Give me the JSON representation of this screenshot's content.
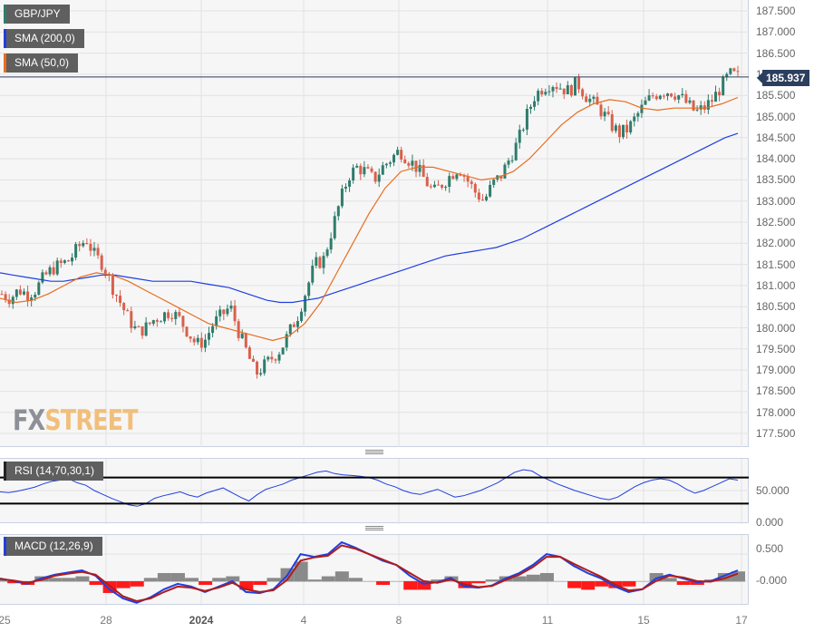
{
  "chart_data": [
    {
      "type": "candlestick",
      "title": "GBP/JPY",
      "legend": [
        {
          "label": "GBP/JPY",
          "color": "#2e7d6b"
        },
        {
          "label": "SMA (200,0)",
          "color": "#1f3fe0"
        },
        {
          "label": "SMA (50,0)",
          "color": "#e86d1f"
        }
      ],
      "y_ticks": [
        "187.500",
        "187.000",
        "186.500",
        "186.000",
        "185.500",
        "185.000",
        "184.500",
        "184.000",
        "183.500",
        "183.000",
        "182.500",
        "182.000",
        "181.500",
        "181.000",
        "180.500",
        "180.000",
        "179.500",
        "179.000",
        "178.500",
        "178.000",
        "177.500"
      ],
      "ylim": [
        177.2,
        187.8
      ],
      "last_price": "185.937",
      "x_ticks": [
        {
          "label": "25",
          "bold": false
        },
        {
          "label": "28",
          "bold": false
        },
        {
          "label": "2024",
          "bold": true
        },
        {
          "label": "4",
          "bold": false
        },
        {
          "label": "8",
          "bold": false
        },
        {
          "label": "11",
          "bold": false
        },
        {
          "label": "15",
          "bold": false
        },
        {
          "label": "17",
          "bold": false
        }
      ],
      "close_path": [
        180.8,
        180.7,
        180.9,
        180.8,
        180.9,
        181.2,
        181.4,
        181.5,
        181.6,
        181.9,
        182.1,
        181.7,
        181.5,
        181.0,
        180.6,
        180.2,
        179.9,
        180.0,
        180.2,
        180.3,
        180.4,
        180.2,
        179.9,
        179.6,
        179.7,
        180.1,
        180.3,
        180.5,
        179.9,
        179.4,
        178.9,
        179.1,
        179.3,
        179.5,
        179.9,
        180.3,
        180.9,
        181.5,
        181.6,
        182.3,
        183.0,
        183.6,
        183.8,
        183.7,
        183.5,
        183.8,
        184.0,
        184.2,
        184.0,
        183.8,
        183.5,
        183.2,
        183.4,
        183.6,
        183.8,
        183.5,
        183.2,
        183.0,
        183.4,
        183.6,
        184.0,
        184.4,
        185.0,
        185.5,
        185.7,
        185.8,
        185.7,
        185.6,
        185.8,
        185.5,
        185.3,
        185.1,
        184.8,
        184.6,
        184.7,
        185.0,
        185.3,
        185.5,
        185.6,
        185.6,
        185.5,
        185.3,
        185.1,
        185.2,
        185.4,
        185.7,
        186.0,
        185.95
      ],
      "sma200_path": [
        181.3,
        181.25,
        181.2,
        181.15,
        181.1,
        181.1,
        181.15,
        181.2,
        181.25,
        181.25,
        181.2,
        181.15,
        181.1,
        181.1,
        181.1,
        181.1,
        181.05,
        181.0,
        180.95,
        180.85,
        180.75,
        180.65,
        180.6,
        180.6,
        180.65,
        180.7,
        180.8,
        180.9,
        181.0,
        181.1,
        181.2,
        181.3,
        181.4,
        181.5,
        181.6,
        181.7,
        181.75,
        181.8,
        181.85,
        181.9,
        182.0,
        182.1,
        182.25,
        182.4,
        182.55,
        182.7,
        182.85,
        183.0,
        183.15,
        183.3,
        183.45,
        183.6,
        183.75,
        183.9,
        184.05,
        184.2,
        184.35,
        184.5,
        184.6
      ],
      "sma50_path": [
        180.7,
        180.6,
        180.65,
        180.8,
        181.0,
        181.2,
        181.3,
        181.25,
        181.1,
        180.9,
        180.7,
        180.5,
        180.3,
        180.1,
        180.0,
        179.9,
        179.8,
        179.7,
        179.8,
        180.1,
        180.6,
        181.3,
        182.0,
        182.7,
        183.3,
        183.7,
        183.8,
        183.8,
        183.7,
        183.6,
        183.5,
        183.55,
        183.7,
        184.0,
        184.4,
        184.8,
        185.1,
        185.3,
        185.4,
        185.35,
        185.2,
        185.15,
        185.2,
        185.2,
        185.2,
        185.3,
        185.45
      ]
    },
    {
      "type": "line",
      "title": "RSI (14,70,30,1)",
      "y_ticks": [
        "50.000",
        "0.000"
      ],
      "levels": [
        70,
        30
      ],
      "ylim": [
        0,
        100
      ],
      "values": [
        48,
        47,
        49,
        52,
        55,
        60,
        64,
        66,
        68,
        62,
        58,
        50,
        44,
        38,
        33,
        28,
        26,
        30,
        38,
        42,
        45,
        48,
        43,
        40,
        46,
        50,
        54,
        47,
        40,
        34,
        44,
        52,
        56,
        60,
        66,
        70,
        74,
        78,
        80,
        76,
        74,
        73,
        72,
        70,
        66,
        60,
        56,
        50,
        46,
        44,
        48,
        52,
        46,
        40,
        42,
        46,
        50,
        56,
        62,
        70,
        78,
        82,
        80,
        72,
        66,
        60,
        55,
        50,
        46,
        42,
        38,
        36,
        40,
        48,
        56,
        62,
        66,
        68,
        66,
        60,
        52,
        46,
        50,
        56,
        62,
        68,
        66
      ]
    },
    {
      "type": "line",
      "title": "MACD (12,26,9)",
      "y_ticks": [
        "0.500",
        "-0.000"
      ],
      "ylim": [
        -0.42,
        0.82
      ],
      "macd": [
        0.05,
        0.0,
        -0.05,
        0.05,
        0.12,
        0.16,
        0.2,
        0.1,
        -0.15,
        -0.32,
        -0.4,
        -0.3,
        -0.15,
        -0.05,
        -0.1,
        -0.2,
        -0.1,
        0.0,
        -0.2,
        -0.22,
        -0.15,
        0.1,
        0.5,
        0.45,
        0.5,
        0.72,
        0.62,
        0.5,
        0.38,
        0.3,
        0.1,
        -0.05,
        -0.02,
        0.06,
        -0.1,
        -0.12,
        -0.08,
        0.05,
        0.15,
        0.3,
        0.5,
        0.45,
        0.28,
        0.15,
        0.05,
        -0.1,
        -0.2,
        -0.15,
        0.05,
        0.12,
        0.05,
        -0.02,
        0.0,
        0.1,
        0.2
      ],
      "signal": [
        0.04,
        0.01,
        -0.03,
        0.02,
        0.1,
        0.14,
        0.17,
        0.12,
        -0.08,
        -0.28,
        -0.37,
        -0.32,
        -0.2,
        -0.1,
        -0.12,
        -0.18,
        -0.12,
        -0.03,
        -0.15,
        -0.2,
        -0.17,
        0.02,
        0.38,
        0.44,
        0.47,
        0.66,
        0.6,
        0.5,
        0.4,
        0.3,
        0.15,
        0.0,
        -0.03,
        0.03,
        -0.06,
        -0.11,
        -0.09,
        0.02,
        0.12,
        0.26,
        0.45,
        0.45,
        0.32,
        0.2,
        0.08,
        -0.06,
        -0.17,
        -0.15,
        0.0,
        0.1,
        0.07,
        0.0,
        -0.01,
        0.05,
        0.14
      ],
      "bar_colors": {
        "positive": "#8a8a8a",
        "negative": "#ff1a1a"
      }
    }
  ],
  "watermark": {
    "fx": "FX",
    "street": "STREET"
  }
}
